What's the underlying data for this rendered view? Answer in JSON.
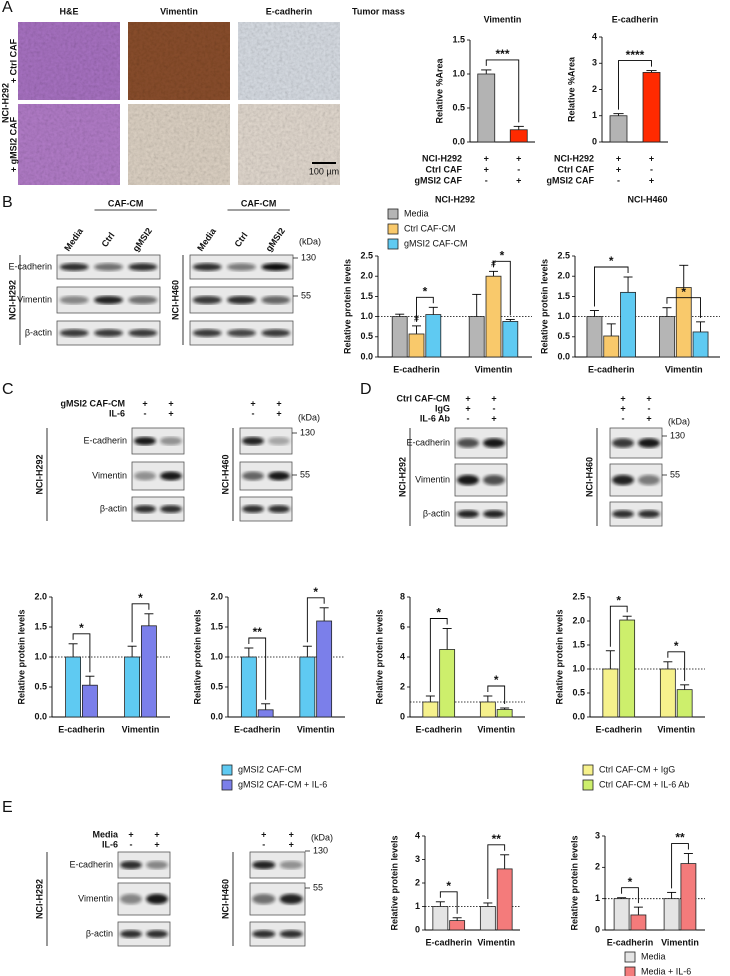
{
  "panel_labels": [
    "A",
    "B",
    "C",
    "D",
    "E"
  ],
  "panel_a": {
    "columns": [
      "H&E",
      "Vimentin",
      "E-cadherin",
      "Tumor mass"
    ],
    "rows": [
      "+ Ctrl CAF",
      "+ gMSI2 CAF"
    ],
    "cell_line": "NCI-H292",
    "scale_bar": "100 µm"
  },
  "panel_b": {
    "blots": [
      {
        "cell_line": "NCI-H292",
        "group": "CAF-CM",
        "lanes": [
          "Media",
          "Ctrl",
          "gMSI2"
        ],
        "proteins": [
          "E-cadherin",
          "Vimentin",
          "β-actin"
        ]
      },
      {
        "cell_line": "NCI-H460",
        "group": "CAF-CM",
        "lanes": [
          "Media",
          "Ctrl",
          "gMSI2"
        ],
        "kda_unit": "(kDa)",
        "kda_markers": [
          "130",
          "55"
        ]
      }
    ]
  },
  "panel_c": {
    "conditions": [
      "gMSI2 CAF-CM",
      "IL-6"
    ],
    "blots": [
      {
        "cell_line": "NCI-H292",
        "marks": [
          [
            "+",
            "+"
          ],
          [
            "-",
            "+"
          ]
        ],
        "proteins": [
          "E-cadherin",
          "Vimentin",
          "β-actin"
        ]
      },
      {
        "cell_line": "NCI-H460",
        "marks": [
          [
            "+",
            "+"
          ],
          [
            "-",
            "+"
          ]
        ],
        "kda_unit": "(kDa)",
        "kda_markers": [
          "130",
          "55"
        ]
      }
    ]
  },
  "panel_d": {
    "conditions": [
      "Ctrl CAF-CM",
      "IgG",
      "IL-6 Ab"
    ],
    "blots": [
      {
        "cell_line": "NCI-H292",
        "marks": [
          [
            "+",
            "+"
          ],
          [
            "+",
            "-"
          ],
          [
            "-",
            "+"
          ]
        ],
        "proteins": [
          "E-cadherin",
          "Vimentin",
          "β-actin"
        ]
      },
      {
        "cell_line": "NCI-H460",
        "marks": [
          [
            "+",
            "+"
          ],
          [
            "+",
            "-"
          ],
          [
            "-",
            "+"
          ]
        ],
        "kda_unit": "(kDa)",
        "kda_markers": [
          "130",
          "55"
        ]
      }
    ]
  },
  "panel_e": {
    "conditions": [
      "Media",
      "IL-6"
    ],
    "blots": [
      {
        "cell_line": "NCI-H292",
        "marks": [
          [
            "+",
            "+"
          ],
          [
            "-",
            "+"
          ]
        ],
        "proteins": [
          "E-cadherin",
          "Vimentin",
          "β-actin"
        ]
      },
      {
        "cell_line": "NCI-H460",
        "marks": [
          [
            "+",
            "+"
          ],
          [
            "-",
            "+"
          ]
        ],
        "kda_unit": "(kDa)",
        "kda_markers": [
          "130",
          "55"
        ]
      }
    ]
  },
  "chart_data": [
    {
      "type": "bar",
      "title": "Vimentin",
      "ylabel": "Relative %Area",
      "values": [
        1.0,
        0.18
      ],
      "errors": [
        0.06,
        0.05
      ],
      "colors": [
        "#b3b3b3",
        "#ff2a00"
      ],
      "conditions": [
        {
          "label": "NCI-H292",
          "marks": [
            "+",
            "+"
          ]
        },
        {
          "label": "Ctrl CAF",
          "marks": [
            "+",
            "-"
          ]
        },
        {
          "label": "gMSI2 CAF",
          "marks": [
            "-",
            "+"
          ]
        }
      ],
      "ylim": [
        0,
        1.5
      ],
      "yticks": [
        {
          "value": 0,
          "label": "0.0"
        },
        0.5,
        {
          "value": 1,
          "label": "1.0"
        },
        1.5
      ],
      "annotations": [
        {
          "text": "***",
          "bars": [
            0,
            1
          ]
        }
      ]
    },
    {
      "type": "bar",
      "title": "E-cadherin",
      "ylabel": "Relative %Area",
      "values": [
        1.0,
        2.65
      ],
      "errors": [
        0.08,
        0.07
      ],
      "colors": [
        "#b3b3b3",
        "#ff2a00"
      ],
      "conditions": [
        {
          "label": "NCI-H292",
          "marks": [
            "+",
            "+"
          ]
        },
        {
          "label": "Ctrl CAF",
          "marks": [
            "+",
            "-"
          ]
        },
        {
          "label": "gMSI2 CAF",
          "marks": [
            "-",
            "+"
          ]
        }
      ],
      "ylim": [
        0,
        4
      ],
      "yticks": [
        0,
        1,
        2,
        3,
        4
      ],
      "annotations": [
        {
          "text": "****",
          "bars": [
            0,
            1
          ]
        }
      ]
    },
    {
      "type": "grouped_bar",
      "title": "NCI-H292",
      "ylabel": "Relative protein levels",
      "categories": [
        "E-cadherin",
        "Vimentin"
      ],
      "series": [
        {
          "name": "Media",
          "color": "#b5b5b5",
          "values": [
            1.0,
            1.0
          ],
          "errors": [
            0.06,
            0.55
          ]
        },
        {
          "name": "Ctrl CAF-CM",
          "color": "#f9c96b",
          "values": [
            0.57,
            2.0
          ],
          "errors": [
            0.2,
            0.12
          ]
        },
        {
          "name": "gMSI2 CAF-CM",
          "color": "#5fcaf2",
          "values": [
            1.05,
            0.88
          ],
          "errors": [
            0.18,
            0.05
          ]
        }
      ],
      "ylim": [
        0,
        2.5
      ],
      "yticks": [
        {
          "value": 0,
          "label": "0.0"
        },
        0.5,
        {
          "value": 1,
          "label": "1.0"
        },
        1.5,
        {
          "value": 2,
          "label": "2.0"
        },
        2.5
      ],
      "reference_line": 1,
      "annotations": [
        {
          "text": "#",
          "category": 0,
          "series": [
            1
          ]
        },
        {
          "text": "*",
          "category": 0,
          "series": [
            1,
            2
          ]
        },
        {
          "text": "#",
          "category": 1,
          "series": [
            1
          ]
        },
        {
          "text": "*",
          "category": 1,
          "series": [
            1,
            2
          ]
        }
      ]
    },
    {
      "type": "grouped_bar",
      "title": "NCI-H460",
      "ylabel": "Relative protein levels",
      "categories": [
        "E-cadherin",
        "Vimentin"
      ],
      "series": [
        {
          "color": "#b5b5b5",
          "values": [
            1.0,
            1.0
          ],
          "errors": [
            0.15,
            0.22
          ]
        },
        {
          "color": "#f9c96b",
          "values": [
            0.52,
            1.72
          ],
          "errors": [
            0.3,
            0.55
          ]
        },
        {
          "color": "#5fcaf2",
          "values": [
            1.6,
            0.62
          ],
          "errors": [
            0.38,
            0.25
          ]
        }
      ],
      "ylim": [
        0,
        2.5
      ],
      "yticks": [
        {
          "value": 0,
          "label": "0.0"
        },
        0.5,
        {
          "value": 1,
          "label": "1.0"
        },
        1.5,
        {
          "value": 2,
          "label": "2.0"
        },
        2.5
      ],
      "reference_line": 1,
      "annotations": [
        {
          "text": "*",
          "category": 0,
          "series": [
            0,
            2
          ]
        },
        {
          "text": "*",
          "category": 1,
          "series": [
            0,
            2
          ]
        }
      ]
    },
    {
      "type": "grouped_bar",
      "ylabel": "Relative protein levels",
      "categories": [
        "E-cadherin",
        "Vimentin"
      ],
      "series": [
        {
          "name": "gMSI2 CAF-CM",
          "color": "#5fcaf2",
          "values": [
            1.0,
            1.0
          ],
          "errors": [
            0.22,
            0.18
          ]
        },
        {
          "name": "gMSI2 CAF-CM + IL-6",
          "color": "#7b7fea",
          "values": [
            0.53,
            1.52
          ],
          "errors": [
            0.15,
            0.2
          ]
        }
      ],
      "ylim": [
        0,
        2
      ],
      "yticks": [
        {
          "value": 0,
          "label": "0.0"
        },
        0.5,
        {
          "value": 1,
          "label": "1.0"
        },
        1.5,
        {
          "value": 2,
          "label": "2.0"
        }
      ],
      "reference_line": 1,
      "annotations": [
        {
          "text": "*",
          "category": 0,
          "series": [
            0,
            1
          ]
        },
        {
          "text": "*",
          "category": 1,
          "series": [
            0,
            1
          ]
        }
      ]
    },
    {
      "type": "grouped_bar",
      "ylabel": "Relative protein levels",
      "categories": [
        "E-cadherin",
        "Vimentin"
      ],
      "series": [
        {
          "color": "#5fcaf2",
          "values": [
            1.0,
            1.0
          ],
          "errors": [
            0.15,
            0.18
          ]
        },
        {
          "color": "#7b7fea",
          "values": [
            0.12,
            1.6
          ],
          "errors": [
            0.1,
            0.22
          ]
        }
      ],
      "ylim": [
        0,
        2
      ],
      "yticks": [
        {
          "value": 0,
          "label": "0.0"
        },
        0.5,
        {
          "value": 1,
          "label": "1.0"
        },
        1.5,
        {
          "value": 2,
          "label": "2.0"
        }
      ],
      "reference_line": 1,
      "annotations": [
        {
          "text": "**",
          "category": 0,
          "series": [
            0,
            1
          ]
        },
        {
          "text": "*",
          "category": 1,
          "series": [
            0,
            1
          ]
        }
      ]
    },
    {
      "type": "grouped_bar",
      "ylabel": "Relative protein levels",
      "categories": [
        "E-cadherin",
        "Vimentin"
      ],
      "series": [
        {
          "name": "Ctrl CAF-CM + IgG",
          "color": "#f6f18c",
          "values": [
            1.0,
            1.0
          ],
          "errors": [
            0.4,
            0.4
          ]
        },
        {
          "name": "Ctrl CAF-CM + IL-6 Ab",
          "color": "#cdef6c",
          "values": [
            4.5,
            0.5
          ],
          "errors": [
            1.4,
            0.1
          ]
        }
      ],
      "ylim": [
        0,
        8
      ],
      "yticks": [
        0,
        2,
        4,
        6,
        8
      ],
      "reference_line": 1,
      "annotations": [
        {
          "text": "*",
          "category": 0,
          "series": [
            0,
            1
          ]
        },
        {
          "text": "*",
          "category": 1,
          "series": [
            0,
            1
          ]
        }
      ]
    },
    {
      "type": "grouped_bar",
      "ylabel": "Relative protein levels",
      "categories": [
        "E-cadherin",
        "Vimentin"
      ],
      "series": [
        {
          "color": "#f6f18c",
          "values": [
            1.0,
            1.0
          ],
          "errors": [
            0.38,
            0.15
          ]
        },
        {
          "color": "#cdef6c",
          "values": [
            2.02,
            0.57
          ],
          "errors": [
            0.08,
            0.1
          ]
        }
      ],
      "ylim": [
        0,
        2.5
      ],
      "yticks": [
        {
          "value": 0,
          "label": "0.0"
        },
        0.5,
        {
          "value": 1,
          "label": "1.0"
        },
        1.5,
        {
          "value": 2,
          "label": "2.0"
        },
        2.5
      ],
      "reference_line": 1,
      "annotations": [
        {
          "text": "*",
          "category": 0,
          "series": [
            0,
            1
          ]
        },
        {
          "text": "*",
          "category": 1,
          "series": [
            0,
            1
          ]
        }
      ]
    },
    {
      "type": "grouped_bar",
      "ylabel": "Relative protein levels",
      "categories": [
        "E-cadherin",
        "Vimentin"
      ],
      "series": [
        {
          "name": "Media",
          "color": "#e4e4e4",
          "values": [
            1.0,
            1.0
          ],
          "errors": [
            0.2,
            0.15
          ]
        },
        {
          "name": "Media + IL-6",
          "color": "#f47b7b",
          "values": [
            0.4,
            2.6
          ],
          "errors": [
            0.12,
            0.6
          ]
        }
      ],
      "ylim": [
        0,
        4
      ],
      "yticks": [
        0,
        1,
        2,
        3,
        4
      ],
      "reference_line": 1,
      "annotations": [
        {
          "text": "*",
          "category": 0,
          "series": [
            0,
            1
          ]
        },
        {
          "text": "**",
          "category": 1,
          "series": [
            0,
            1
          ]
        }
      ]
    },
    {
      "type": "grouped_bar",
      "ylabel": "Relative protein levels",
      "categories": [
        "E-cadherin",
        "Vimentin"
      ],
      "series": [
        {
          "color": "#e4e4e4",
          "values": [
            1.0,
            1.0
          ],
          "errors": [
            0.03,
            0.2
          ]
        },
        {
          "color": "#f47b7b",
          "values": [
            0.48,
            2.12
          ],
          "errors": [
            0.25,
            0.32
          ]
        }
      ],
      "ylim": [
        0,
        3
      ],
      "yticks": [
        0,
        1,
        2,
        3
      ],
      "reference_line": 1,
      "annotations": [
        {
          "text": "*",
          "category": 0,
          "series": [
            0,
            1
          ]
        },
        {
          "text": "**",
          "category": 1,
          "series": [
            0,
            1
          ]
        }
      ]
    }
  ]
}
